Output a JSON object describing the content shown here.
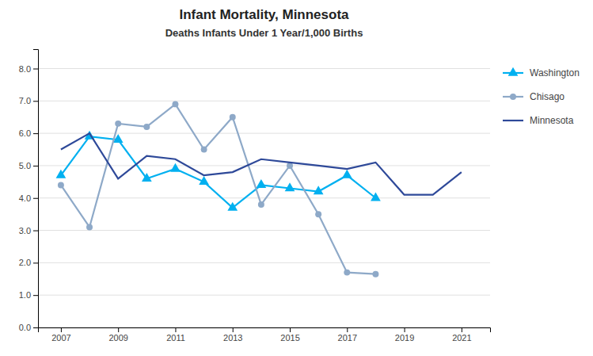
{
  "chart_data": {
    "type": "line",
    "title": "Infant Mortality, Minnesota",
    "subtitle": "Deaths Infants Under 1 Year/1,000 Births",
    "x": [
      2007,
      2008,
      2009,
      2010,
      2011,
      2012,
      2013,
      2014,
      2015,
      2016,
      2017,
      2018,
      2019,
      2020,
      2021
    ],
    "series": [
      {
        "name": "Washington",
        "color": "#00b0f0",
        "marker": "triangle",
        "line_style": "solid",
        "values": [
          4.7,
          5.9,
          5.8,
          4.6,
          4.9,
          4.5,
          3.7,
          4.4,
          4.3,
          4.2,
          4.7,
          4.0,
          null,
          null,
          null
        ]
      },
      {
        "name": "Chisago",
        "color": "#8ea9c8",
        "marker": "circle",
        "line_style": "solid",
        "values": [
          4.4,
          3.1,
          6.3,
          6.2,
          6.9,
          5.5,
          6.5,
          3.8,
          5.0,
          3.5,
          1.7,
          1.65,
          null,
          null,
          null
        ]
      },
      {
        "name": "Minnesota",
        "color": "#2e4999",
        "marker": "none",
        "line_style": "solid",
        "values": [
          5.5,
          6.0,
          4.6,
          5.3,
          5.2,
          4.7,
          4.8,
          5.2,
          5.1,
          5.0,
          4.9,
          5.1,
          4.1,
          4.1,
          4.8
        ]
      }
    ],
    "xlim": [
      2006.2,
      2022.0
    ],
    "xticks": [
      2007,
      2009,
      2011,
      2013,
      2015,
      2017,
      2019,
      2021
    ],
    "ylim": [
      0.0,
      8.6
    ],
    "yticks": [
      {
        "value": 0.0,
        "label": "0.0"
      },
      {
        "value": 1.0,
        "label": "1.0"
      },
      {
        "value": 2.0,
        "label": "2.0"
      },
      {
        "value": 3.0,
        "label": "3.0"
      },
      {
        "value": 4.0,
        "label": "4.0"
      },
      {
        "value": 5.0,
        "label": "5.0"
      },
      {
        "value": 6.0,
        "label": "6.0"
      },
      {
        "value": 7.0,
        "label": "7.0"
      },
      {
        "value": 8.0,
        "label": "8.0"
      }
    ],
    "grid": true,
    "legend": "right"
  }
}
